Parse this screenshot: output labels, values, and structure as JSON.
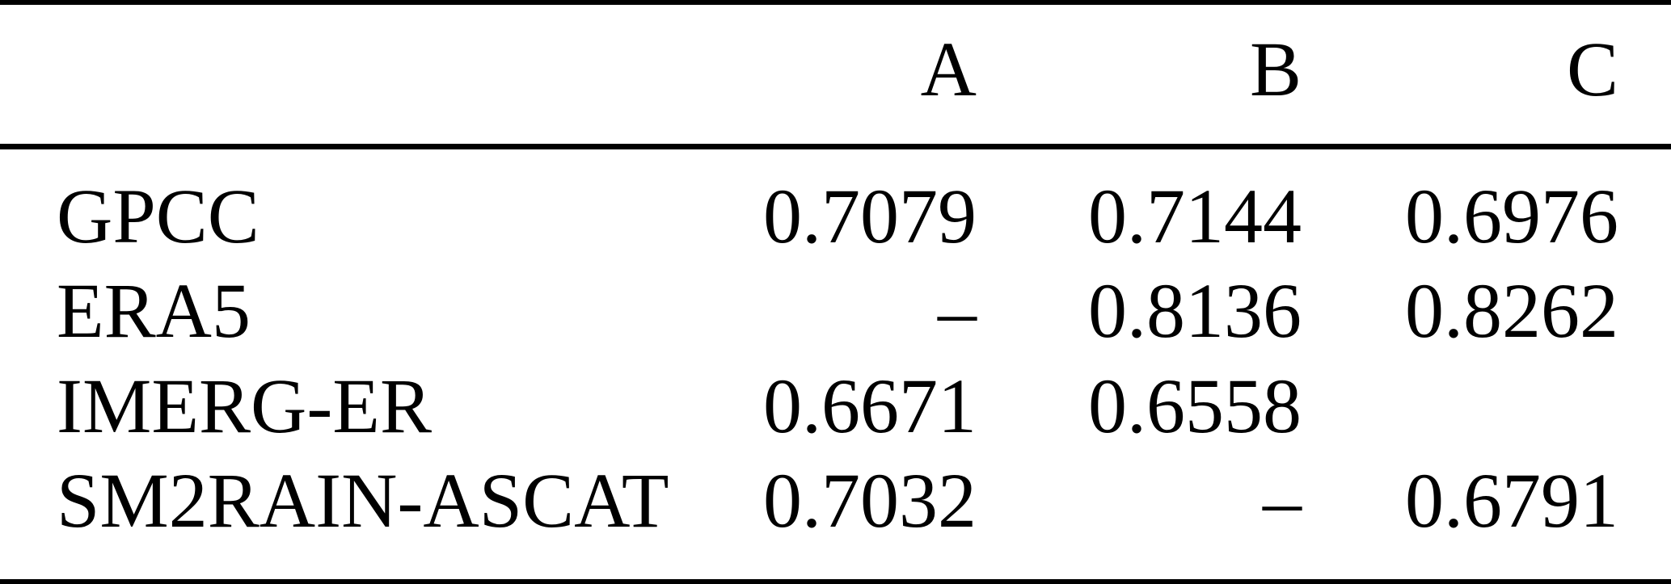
{
  "table": {
    "columns": [
      "",
      "A",
      "B",
      "C"
    ],
    "rows": [
      {
        "label": "GPCC",
        "A": "0.7079",
        "B": "0.7144",
        "C": "0.6976"
      },
      {
        "label": "ERA5",
        "A": "–",
        "B": "0.8136",
        "C": "0.8262"
      },
      {
        "label": "IMERG-ER",
        "A": "0.6671",
        "B": "0.6558",
        "C": ""
      },
      {
        "label": "SM2RAIN-ASCAT",
        "A": "0.7032",
        "B": "–",
        "C": "0.6791"
      }
    ]
  },
  "colors": {
    "text": "#000000",
    "rule": "#000000",
    "background": "#ffffff"
  },
  "chart_data": {
    "type": "table",
    "columns": [
      "",
      "A",
      "B",
      "C"
    ],
    "rows": [
      [
        "GPCC",
        "0.7079",
        "0.7144",
        "0.6976"
      ],
      [
        "ERA5",
        "–",
        "0.8136",
        "0.8262"
      ],
      [
        "IMERG-ER",
        "0.6671",
        "0.6558",
        ""
      ],
      [
        "SM2RAIN-ASCAT",
        "0.7032",
        "–",
        "0.6791"
      ]
    ]
  }
}
